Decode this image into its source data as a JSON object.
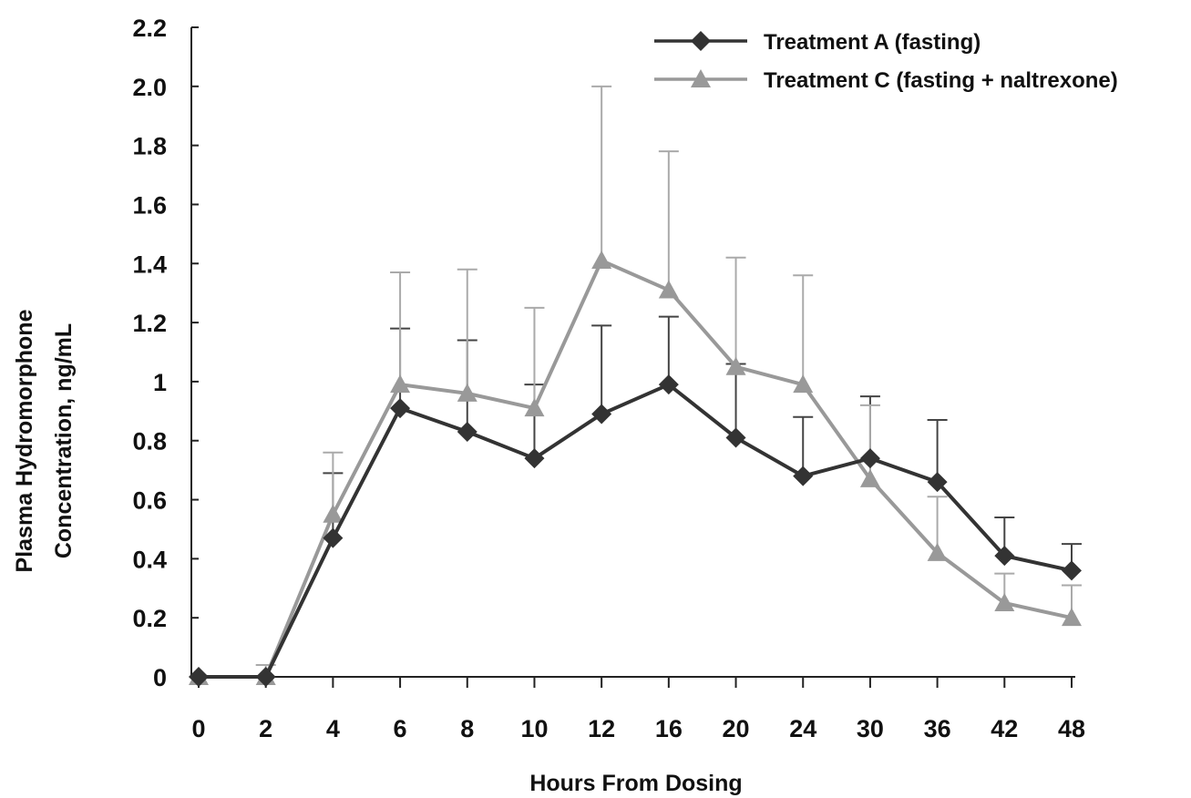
{
  "chart_data": {
    "type": "line",
    "xlabel": "Hours From Dosing",
    "ylabel_lines": [
      "Plasma Hydromorphone",
      "Concentration, ng/mL"
    ],
    "categories": [
      "0",
      "2",
      "4",
      "6",
      "8",
      "10",
      "12",
      "16",
      "20",
      "24",
      "30",
      "36",
      "42",
      "48"
    ],
    "x_scale": "categorical",
    "ylim": [
      0,
      2.2
    ],
    "yticks": [
      "0",
      "0.2",
      "0.4",
      "0.6",
      "0.8",
      "1",
      "1.2",
      "1.4",
      "1.6",
      "1.8",
      "2.0",
      "2.2"
    ],
    "ytick_values": [
      0,
      0.2,
      0.4,
      0.6,
      0.8,
      1.0,
      1.2,
      1.4,
      1.6,
      1.8,
      2.0,
      2.2
    ],
    "grid": false,
    "legend_position": "top-right",
    "series": [
      {
        "name": "Treatment A (fasting)",
        "marker": "diamond",
        "color": "#333333",
        "values": [
          0,
          0,
          0.47,
          0.91,
          0.83,
          0.74,
          0.89,
          0.99,
          0.81,
          0.68,
          0.74,
          0.66,
          0.41,
          0.36
        ],
        "error_upper": [
          0,
          0,
          0.69,
          1.18,
          1.14,
          0.99,
          1.19,
          1.22,
          1.06,
          0.88,
          0.95,
          0.87,
          0.54,
          0.45
        ]
      },
      {
        "name": "Treatment C (fasting + naltrexone)",
        "marker": "triangle",
        "color": "#999999",
        "values": [
          0,
          0,
          0.55,
          0.99,
          0.96,
          0.91,
          1.41,
          1.31,
          1.05,
          0.99,
          0.67,
          0.42,
          0.25,
          0.2
        ],
        "error_upper": [
          0,
          0.04,
          0.76,
          1.37,
          1.38,
          1.25,
          2.0,
          1.78,
          1.42,
          1.36,
          0.92,
          0.61,
          0.35,
          0.31
        ]
      }
    ]
  }
}
